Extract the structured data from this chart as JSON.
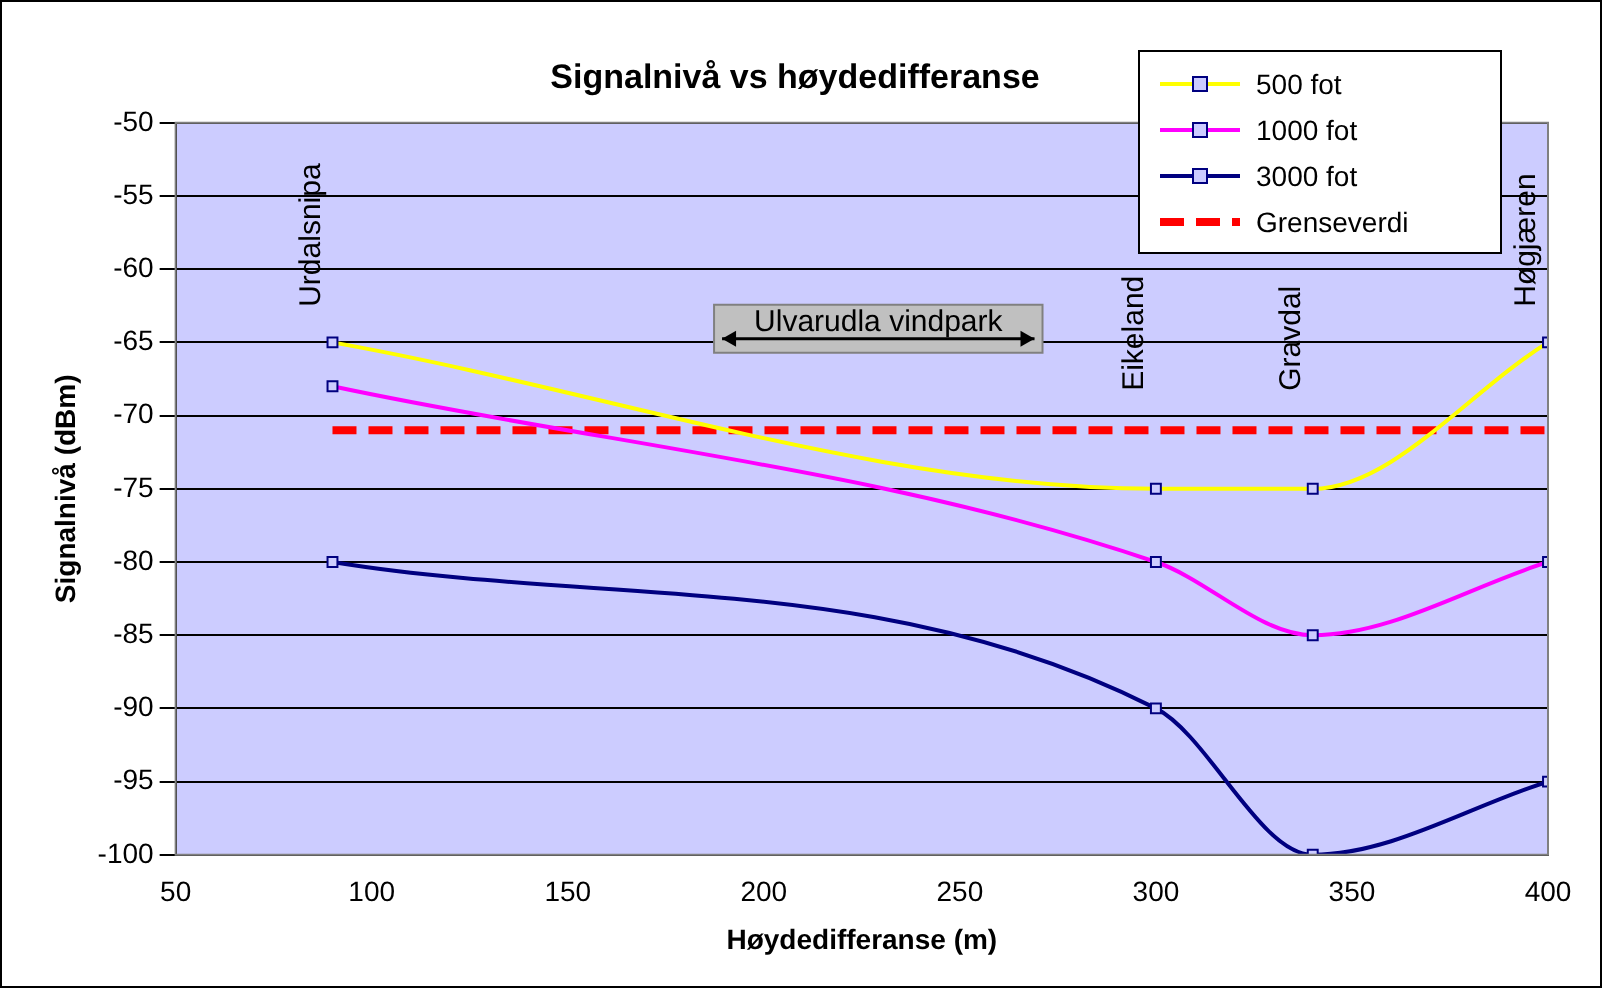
{
  "chart_data": {
    "type": "line",
    "title": "Signalnivå vs høydedifferanse",
    "xlabel": "Høydedifferanse (m)",
    "ylabel": "Signalnivå (dBm)",
    "xlim": [
      50,
      400
    ],
    "xticks": [
      50,
      100,
      150,
      200,
      250,
      300,
      350,
      400
    ],
    "ylim": [
      -100,
      -50
    ],
    "yticks": [
      -100,
      -95,
      -90,
      -85,
      -80,
      -75,
      -70,
      -65,
      -60,
      -55,
      -50
    ],
    "grid": "y",
    "legend": "top right",
    "marker": "square",
    "series": [
      {
        "name": "500 fot",
        "color": "#ffff00",
        "x": [
          90,
          300,
          340,
          400
        ],
        "values": [
          -65,
          -75,
          -75,
          -65
        ]
      },
      {
        "name": "1000 fot",
        "color": "#ff00ff",
        "x": [
          90,
          300,
          340,
          400
        ],
        "values": [
          -68,
          -80,
          -85,
          -80
        ]
      },
      {
        "name": "3000 fot",
        "color": "#000080",
        "x": [
          90,
          300,
          340,
          400
        ],
        "values": [
          -80,
          -90,
          -100,
          -95
        ]
      },
      {
        "name": "Grenseverdi",
        "color": "#ff0000",
        "x": [
          90,
          400
        ],
        "values": [
          -71,
          -71
        ],
        "marker": "none",
        "line_style": "dashed"
      }
    ],
    "annotations": [
      "Urdalsnipa",
      "Eikeland",
      "Gravdal",
      "Høgjæren",
      "Ulvarudla vindpark"
    ]
  }
}
